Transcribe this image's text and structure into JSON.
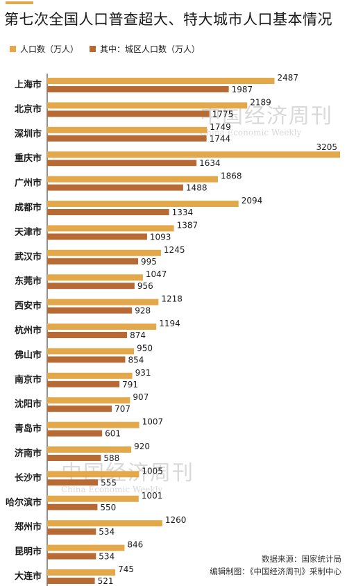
{
  "title": "第七次全国人口普查超大、特大城市人口基本情况",
  "legend": {
    "total": "人口数（万人）",
    "urban": "其中：城区人口数（万人）"
  },
  "colors": {
    "total": "#e2a84a",
    "urban": "#b86a35",
    "accent": "#e2a84a"
  },
  "watermark": {
    "cn": "中国经济周刊",
    "en": "China Economic Weekly"
  },
  "source": {
    "line1": "数据来源：国家统计局",
    "line2": "编辑制图：《中国经济周刊》采制中心"
  },
  "chart_data": {
    "type": "bar",
    "orientation": "horizontal",
    "categories": [
      "上海市",
      "北京市",
      "深圳市",
      "重庆市",
      "广州市",
      "成都市",
      "天津市",
      "武汉市",
      "东莞市",
      "西安市",
      "杭州市",
      "佛山市",
      "南京市",
      "沈阳市",
      "青岛市",
      "济南市",
      "长沙市",
      "哈尔滨市",
      "郑州市",
      "昆明市",
      "大连市"
    ],
    "series": [
      {
        "name": "人口数（万人）",
        "values": [
          2487,
          2189,
          1749,
          3205,
          1868,
          2094,
          1387,
          1245,
          1047,
          1218,
          1194,
          950,
          931,
          907,
          1007,
          920,
          1005,
          1001,
          1260,
          846,
          745
        ]
      },
      {
        "name": "其中：城区人口数（万人）",
        "values": [
          1987,
          1775,
          1744,
          1634,
          1488,
          1334,
          1093,
          995,
          956,
          928,
          874,
          854,
          791,
          707,
          601,
          588,
          555,
          550,
          534,
          534,
          521
        ]
      }
    ],
    "xlim": [
      0,
      3205
    ],
    "grid": false,
    "legend_position": "top-left"
  }
}
